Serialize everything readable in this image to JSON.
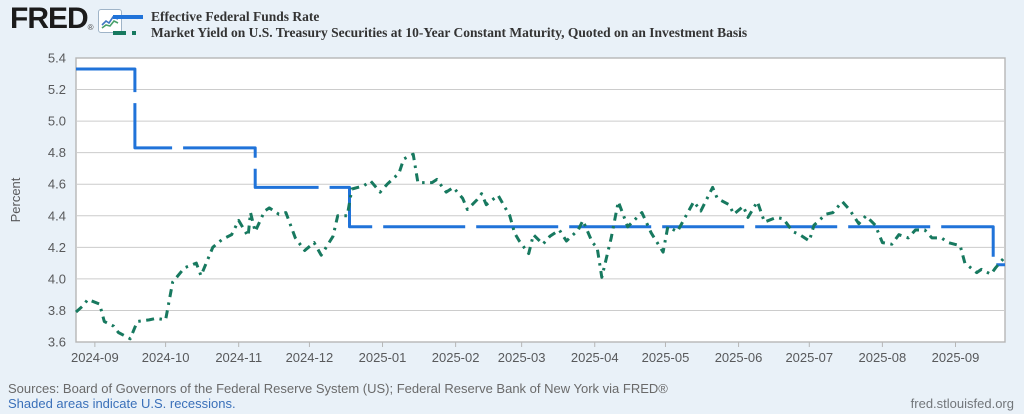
{
  "header": {
    "logo_text": "FRED",
    "logo_reg": "®",
    "legend": [
      {
        "label": "Effective Federal Funds Rate",
        "color": "#2073d9",
        "style": "solid"
      },
      {
        "label": "Market Yield on U.S. Treasury Securities at 10-Year Constant Maturity, Quoted on an Investment Basis",
        "color": "#17795f",
        "style": "dash-dot"
      }
    ]
  },
  "footer": {
    "sources": "Sources: Board of Governors of the Federal Reserve System (US); Federal Reserve Bank of New York via FRED®",
    "recessions_note": "Shaded areas indicate U.S. recessions.",
    "site": "fred.stlouisfed.org"
  },
  "colors": {
    "page_background": "#e9f1f8",
    "plot_background": "#ffffff",
    "gridline": "#cccccc",
    "plot_border": "#b6b6b6",
    "tick_label": "#58595b",
    "series1": "#2073d9",
    "series2": "#17795f",
    "link": "#3a70b9"
  },
  "chart_data": {
    "type": "line",
    "title": "",
    "xlabel": "",
    "ylabel": "Percent",
    "ylim": [
      3.6,
      5.4
    ],
    "yticks": [
      3.6,
      3.8,
      4.0,
      4.2,
      4.4,
      4.6,
      4.8,
      5.0,
      5.2,
      5.4
    ],
    "x_range": [
      "2024-08-24",
      "2025-09-22"
    ],
    "xticks": [
      "2024-09",
      "2024-10",
      "2024-11",
      "2024-12",
      "2025-01",
      "2025-02",
      "2025-03",
      "2025-04",
      "2025-05",
      "2025-06",
      "2025-07",
      "2025-08",
      "2025-09"
    ],
    "grid": "horizontal",
    "legend_position": "top-left",
    "series": [
      {
        "name": "Effective Federal Funds Rate",
        "color": "#2073d9",
        "dash": "82 11",
        "width": 3,
        "points": [
          [
            "2024-08-24",
            5.33
          ],
          [
            "2024-09-18",
            5.33
          ],
          [
            "2024-09-18",
            4.83
          ],
          [
            "2024-11-08",
            4.83
          ],
          [
            "2024-11-08",
            4.58
          ],
          [
            "2024-12-18",
            4.58
          ],
          [
            "2024-12-18",
            4.33
          ],
          [
            "2025-09-17",
            4.33
          ],
          [
            "2025-09-17",
            4.09
          ],
          [
            "2025-09-22",
            4.09
          ]
        ]
      },
      {
        "name": "Market Yield on U.S. Treasury Securities at 10-Year Constant Maturity, Quoted on an Investment Basis",
        "color": "#17795f",
        "dash": "8 5.5 2.5 5.5",
        "width": 3,
        "points": [
          [
            "2024-08-24",
            3.79
          ],
          [
            "2024-08-27",
            3.83
          ],
          [
            "2024-08-29",
            3.87
          ],
          [
            "2024-09-03",
            3.84
          ],
          [
            "2024-09-05",
            3.73
          ],
          [
            "2024-09-09",
            3.7
          ],
          [
            "2024-09-11",
            3.66
          ],
          [
            "2024-09-16",
            3.62
          ],
          [
            "2024-09-19",
            3.73
          ],
          [
            "2024-09-24",
            3.74
          ],
          [
            "2024-09-27",
            3.75
          ],
          [
            "2024-10-01",
            3.74
          ],
          [
            "2024-10-04",
            3.98
          ],
          [
            "2024-10-09",
            4.07
          ],
          [
            "2024-10-14",
            4.1
          ],
          [
            "2024-10-16",
            4.02
          ],
          [
            "2024-10-21",
            4.2
          ],
          [
            "2024-10-25",
            4.25
          ],
          [
            "2024-10-29",
            4.28
          ],
          [
            "2024-11-01",
            4.37
          ],
          [
            "2024-11-05",
            4.27
          ],
          [
            "2024-11-06",
            4.42
          ],
          [
            "2024-11-08",
            4.3
          ],
          [
            "2024-11-12",
            4.43
          ],
          [
            "2024-11-14",
            4.45
          ],
          [
            "2024-11-18",
            4.41
          ],
          [
            "2024-11-21",
            4.42
          ],
          [
            "2024-11-25",
            4.26
          ],
          [
            "2024-11-29",
            4.18
          ],
          [
            "2024-12-03",
            4.23
          ],
          [
            "2024-12-06",
            4.15
          ],
          [
            "2024-12-11",
            4.27
          ],
          [
            "2024-12-13",
            4.4
          ],
          [
            "2024-12-17",
            4.4
          ],
          [
            "2024-12-19",
            4.57
          ],
          [
            "2024-12-24",
            4.59
          ],
          [
            "2024-12-27",
            4.62
          ],
          [
            "2024-12-31",
            4.55
          ],
          [
            "2025-01-03",
            4.6
          ],
          [
            "2025-01-08",
            4.67
          ],
          [
            "2025-01-10",
            4.76
          ],
          [
            "2025-01-14",
            4.79
          ],
          [
            "2025-01-16",
            4.61
          ],
          [
            "2025-01-22",
            4.61
          ],
          [
            "2025-01-24",
            4.63
          ],
          [
            "2025-01-28",
            4.55
          ],
          [
            "2025-01-31",
            4.58
          ],
          [
            "2025-02-04",
            4.51
          ],
          [
            "2025-02-06",
            4.44
          ],
          [
            "2025-02-10",
            4.5
          ],
          [
            "2025-02-12",
            4.54
          ],
          [
            "2025-02-14",
            4.47
          ],
          [
            "2025-02-19",
            4.53
          ],
          [
            "2025-02-24",
            4.4
          ],
          [
            "2025-02-26",
            4.29
          ],
          [
            "2025-02-28",
            4.24
          ],
          [
            "2025-03-04",
            4.16
          ],
          [
            "2025-03-06",
            4.28
          ],
          [
            "2025-03-10",
            4.22
          ],
          [
            "2025-03-13",
            4.27
          ],
          [
            "2025-03-17",
            4.31
          ],
          [
            "2025-03-20",
            4.24
          ],
          [
            "2025-03-25",
            4.31
          ],
          [
            "2025-03-27",
            4.37
          ],
          [
            "2025-03-31",
            4.23
          ],
          [
            "2025-04-02",
            4.2
          ],
          [
            "2025-04-04",
            4.01
          ],
          [
            "2025-04-08",
            4.26
          ],
          [
            "2025-04-11",
            4.49
          ],
          [
            "2025-04-15",
            4.33
          ],
          [
            "2025-04-21",
            4.42
          ],
          [
            "2025-04-25",
            4.29
          ],
          [
            "2025-04-30",
            4.17
          ],
          [
            "2025-05-02",
            4.33
          ],
          [
            "2025-05-06",
            4.3
          ],
          [
            "2025-05-09",
            4.38
          ],
          [
            "2025-05-13",
            4.49
          ],
          [
            "2025-05-16",
            4.43
          ],
          [
            "2025-05-21",
            4.58
          ],
          [
            "2025-05-23",
            4.51
          ],
          [
            "2025-05-28",
            4.47
          ],
          [
            "2025-05-30",
            4.41
          ],
          [
            "2025-06-03",
            4.46
          ],
          [
            "2025-06-05",
            4.39
          ],
          [
            "2025-06-09",
            4.49
          ],
          [
            "2025-06-12",
            4.36
          ],
          [
            "2025-06-17",
            4.39
          ],
          [
            "2025-06-20",
            4.38
          ],
          [
            "2025-06-24",
            4.3
          ],
          [
            "2025-06-27",
            4.28
          ],
          [
            "2025-07-01",
            4.24
          ],
          [
            "2025-07-03",
            4.34
          ],
          [
            "2025-07-08",
            4.41
          ],
          [
            "2025-07-11",
            4.42
          ],
          [
            "2025-07-15",
            4.49
          ],
          [
            "2025-07-18",
            4.44
          ],
          [
            "2025-07-22",
            4.35
          ],
          [
            "2025-07-25",
            4.4
          ],
          [
            "2025-07-29",
            4.34
          ],
          [
            "2025-08-01",
            4.23
          ],
          [
            "2025-08-05",
            4.22
          ],
          [
            "2025-08-08",
            4.28
          ],
          [
            "2025-08-12",
            4.26
          ],
          [
            "2025-08-15",
            4.31
          ],
          [
            "2025-08-19",
            4.31
          ],
          [
            "2025-08-22",
            4.26
          ],
          [
            "2025-08-26",
            4.26
          ],
          [
            "2025-08-29",
            4.23
          ],
          [
            "2025-09-03",
            4.21
          ],
          [
            "2025-09-05",
            4.1
          ],
          [
            "2025-09-10",
            4.04
          ],
          [
            "2025-09-12",
            4.06
          ],
          [
            "2025-09-16",
            4.03
          ],
          [
            "2025-09-18",
            4.07
          ],
          [
            "2025-09-22",
            4.14
          ]
        ]
      }
    ]
  }
}
